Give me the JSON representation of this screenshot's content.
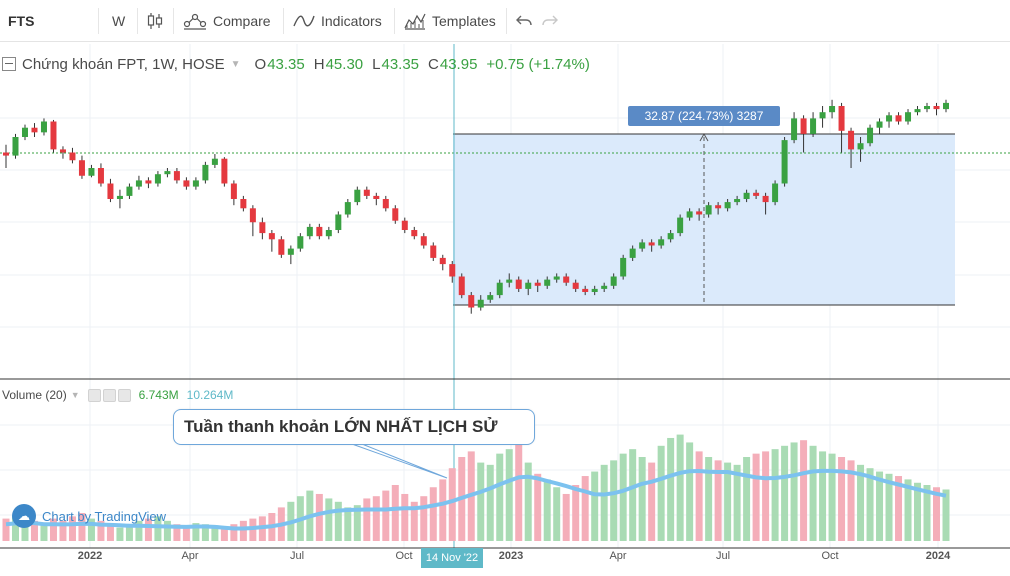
{
  "toolbar": {
    "symbol": "FTS",
    "interval": "W",
    "compare_label": "Compare",
    "indicators_label": "Indicators",
    "templates_label": "Templates",
    "candle_icon": "candlestick-icon",
    "compare_icon": "compare-icon",
    "indicators_icon": "indicators-icon",
    "templates_icon": "templates-icon",
    "undo_icon": "undo-icon",
    "redo_icon": "redo-icon"
  },
  "legend": {
    "title": "Chứng khoán FPT, 1W, HOSE",
    "open_label": "O",
    "open": "43.35",
    "high_label": "H",
    "high": "45.30",
    "low_label": "L",
    "low": "43.35",
    "close_label": "C",
    "close": "43.95",
    "change": "+0.75 (+1.74%)"
  },
  "volume_legend": {
    "name": "Volume (20)",
    "value1": "6.743M",
    "value2": "10.264M"
  },
  "callout": "Tuần thanh khoản LỚN NHẤT LỊCH SỬ",
  "measure_label": "32.87 (224.73%) 3287",
  "watermark": "Chart by TradingView",
  "colors": {
    "up": "#3aa142",
    "down": "#e4393f",
    "up_vol": "#a9dbb4",
    "down_vol": "#f4aeb9",
    "ma_line": "#7cc2ef",
    "range_fill": "#dbeafb",
    "crosshair": "#5fb9c8",
    "accent": "#5a8ac6"
  },
  "chart_data": {
    "type": "candlestick",
    "xaxis": {
      "ticks": [
        "2022",
        "Apr",
        "Jul",
        "Oct",
        "14 Nov '22",
        "2023",
        "Apr",
        "Jul",
        "Oct",
        "2024"
      ],
      "highlighted": "14 Nov '22"
    },
    "price_series_relative": [
      [
        0.5,
        0.48,
        0.4,
        0.55
      ],
      [
        0.48,
        0.6,
        0.46,
        0.62
      ],
      [
        0.6,
        0.66,
        0.58,
        0.68
      ],
      [
        0.66,
        0.63,
        0.6,
        0.69
      ],
      [
        0.63,
        0.7,
        0.61,
        0.72
      ],
      [
        0.7,
        0.52,
        0.5,
        0.71
      ],
      [
        0.52,
        0.5,
        0.46,
        0.54
      ],
      [
        0.5,
        0.45,
        0.43,
        0.53
      ],
      [
        0.45,
        0.35,
        0.33,
        0.48
      ],
      [
        0.35,
        0.4,
        0.34,
        0.42
      ],
      [
        0.4,
        0.3,
        0.28,
        0.43
      ],
      [
        0.3,
        0.2,
        0.18,
        0.33
      ],
      [
        0.2,
        0.22,
        0.14,
        0.26
      ],
      [
        0.22,
        0.28,
        0.2,
        0.3
      ],
      [
        0.28,
        0.32,
        0.26,
        0.35
      ],
      [
        0.32,
        0.3,
        0.27,
        0.34
      ],
      [
        0.3,
        0.36,
        0.28,
        0.38
      ],
      [
        0.36,
        0.38,
        0.34,
        0.4
      ],
      [
        0.38,
        0.32,
        0.3,
        0.4
      ],
      [
        0.32,
        0.28,
        0.26,
        0.34
      ],
      [
        0.28,
        0.32,
        0.26,
        0.34
      ],
      [
        0.32,
        0.42,
        0.3,
        0.44
      ],
      [
        0.42,
        0.46,
        0.4,
        0.49
      ],
      [
        0.46,
        0.3,
        0.28,
        0.47
      ],
      [
        0.3,
        0.2,
        0.16,
        0.32
      ],
      [
        0.2,
        0.14,
        0.12,
        0.22
      ],
      [
        0.14,
        0.05,
        -0.04,
        0.16
      ],
      [
        0.05,
        -0.02,
        -0.06,
        0.08
      ],
      [
        -0.02,
        -0.06,
        -0.14,
        0.0
      ],
      [
        -0.06,
        -0.16,
        -0.18,
        -0.04
      ],
      [
        -0.16,
        -0.12,
        -0.22,
        -0.1
      ],
      [
        -0.12,
        -0.04,
        -0.14,
        -0.02
      ],
      [
        -0.04,
        0.02,
        -0.06,
        0.04
      ],
      [
        0.02,
        -0.04,
        -0.06,
        0.04
      ],
      [
        -0.04,
        0.0,
        -0.06,
        0.02
      ],
      [
        0.0,
        0.1,
        -0.02,
        0.12
      ],
      [
        0.1,
        0.18,
        0.08,
        0.2
      ],
      [
        0.18,
        0.26,
        0.16,
        0.28
      ],
      [
        0.26,
        0.22,
        0.2,
        0.28
      ],
      [
        0.22,
        0.2,
        0.16,
        0.24
      ],
      [
        0.2,
        0.14,
        0.12,
        0.22
      ],
      [
        0.14,
        0.06,
        0.04,
        0.16
      ],
      [
        0.06,
        0.0,
        -0.02,
        0.08
      ],
      [
        0.0,
        -0.04,
        -0.06,
        0.02
      ],
      [
        -0.04,
        -0.1,
        -0.12,
        -0.02
      ],
      [
        -0.1,
        -0.18,
        -0.2,
        -0.08
      ],
      [
        -0.18,
        -0.22,
        -0.26,
        -0.16
      ],
      [
        -0.22,
        -0.3,
        -0.34,
        -0.2
      ],
      [
        -0.3,
        -0.42,
        -0.44,
        -0.28
      ],
      [
        -0.42,
        -0.5,
        -0.54,
        -0.4
      ],
      [
        -0.5,
        -0.45,
        -0.52,
        -0.42
      ],
      [
        -0.45,
        -0.42,
        -0.47,
        -0.4
      ],
      [
        -0.42,
        -0.34,
        -0.44,
        -0.32
      ],
      [
        -0.34,
        -0.32,
        -0.37,
        -0.28
      ],
      [
        -0.32,
        -0.38,
        -0.4,
        -0.3
      ],
      [
        -0.38,
        -0.34,
        -0.42,
        -0.32
      ],
      [
        -0.34,
        -0.36,
        -0.4,
        -0.32
      ],
      [
        -0.36,
        -0.32,
        -0.38,
        -0.3
      ],
      [
        -0.32,
        -0.3,
        -0.34,
        -0.28
      ],
      [
        -0.3,
        -0.34,
        -0.36,
        -0.28
      ],
      [
        -0.34,
        -0.38,
        -0.4,
        -0.32
      ],
      [
        -0.38,
        -0.4,
        -0.42,
        -0.36
      ],
      [
        -0.4,
        -0.38,
        -0.42,
        -0.36
      ],
      [
        -0.38,
        -0.36,
        -0.4,
        -0.34
      ],
      [
        -0.36,
        -0.3,
        -0.38,
        -0.28
      ],
      [
        -0.3,
        -0.18,
        -0.32,
        -0.16
      ],
      [
        -0.18,
        -0.12,
        -0.2,
        -0.1
      ],
      [
        -0.12,
        -0.08,
        -0.14,
        -0.06
      ],
      [
        -0.08,
        -0.1,
        -0.14,
        -0.06
      ],
      [
        -0.1,
        -0.06,
        -0.12,
        -0.04
      ],
      [
        -0.06,
        -0.02,
        -0.08,
        0.0
      ],
      [
        -0.02,
        0.08,
        -0.04,
        0.1
      ],
      [
        0.08,
        0.12,
        0.06,
        0.14
      ],
      [
        0.12,
        0.1,
        0.06,
        0.14
      ],
      [
        0.1,
        0.16,
        0.08,
        0.18
      ],
      [
        0.16,
        0.14,
        0.1,
        0.18
      ],
      [
        0.14,
        0.18,
        0.12,
        0.2
      ],
      [
        0.18,
        0.2,
        0.16,
        0.22
      ],
      [
        0.2,
        0.24,
        0.18,
        0.26
      ],
      [
        0.24,
        0.22,
        0.2,
        0.26
      ],
      [
        0.22,
        0.18,
        0.1,
        0.24
      ],
      [
        0.18,
        0.3,
        0.16,
        0.32
      ],
      [
        0.3,
        0.58,
        0.28,
        0.6
      ],
      [
        0.58,
        0.72,
        0.56,
        0.76
      ],
      [
        0.72,
        0.62,
        0.5,
        0.74
      ],
      [
        0.62,
        0.72,
        0.6,
        0.76
      ],
      [
        0.72,
        0.76,
        0.66,
        0.8
      ],
      [
        0.76,
        0.8,
        0.72,
        0.84
      ],
      [
        0.8,
        0.64,
        0.5,
        0.82
      ],
      [
        0.64,
        0.52,
        0.4,
        0.66
      ],
      [
        0.52,
        0.56,
        0.44,
        0.6
      ],
      [
        0.56,
        0.66,
        0.54,
        0.68
      ],
      [
        0.66,
        0.7,
        0.62,
        0.72
      ],
      [
        0.7,
        0.74,
        0.66,
        0.76
      ],
      [
        0.74,
        0.7,
        0.68,
        0.76
      ],
      [
        0.7,
        0.76,
        0.68,
        0.78
      ],
      [
        0.76,
        0.78,
        0.74,
        0.8
      ],
      [
        0.78,
        0.8,
        0.76,
        0.82
      ],
      [
        0.8,
        0.78,
        0.74,
        0.82
      ],
      [
        0.78,
        0.82,
        0.76,
        0.84
      ]
    ],
    "volume_relative": [
      0.2,
      0.22,
      0.25,
      0.18,
      0.15,
      0.2,
      0.18,
      0.22,
      0.25,
      0.2,
      0.18,
      0.15,
      0.12,
      0.15,
      0.18,
      0.2,
      0.22,
      0.18,
      0.15,
      0.14,
      0.16,
      0.15,
      0.14,
      0.12,
      0.15,
      0.18,
      0.2,
      0.22,
      0.25,
      0.3,
      0.35,
      0.4,
      0.45,
      0.42,
      0.38,
      0.35,
      0.3,
      0.32,
      0.38,
      0.4,
      0.45,
      0.5,
      0.42,
      0.35,
      0.4,
      0.48,
      0.55,
      0.65,
      0.75,
      0.8,
      0.7,
      0.68,
      0.78,
      0.82,
      0.88,
      0.7,
      0.6,
      0.55,
      0.48,
      0.42,
      0.5,
      0.58,
      0.62,
      0.68,
      0.72,
      0.78,
      0.82,
      0.75,
      0.7,
      0.85,
      0.92,
      0.95,
      0.88,
      0.8,
      0.75,
      0.72,
      0.7,
      0.68,
      0.75,
      0.78,
      0.8,
      0.82,
      0.85,
      0.88,
      0.9,
      0.85,
      0.8,
      0.78,
      0.75,
      0.72,
      0.68,
      0.65,
      0.62,
      0.6,
      0.58,
      0.55,
      0.52,
      0.5,
      0.48,
      0.46
    ]
  }
}
